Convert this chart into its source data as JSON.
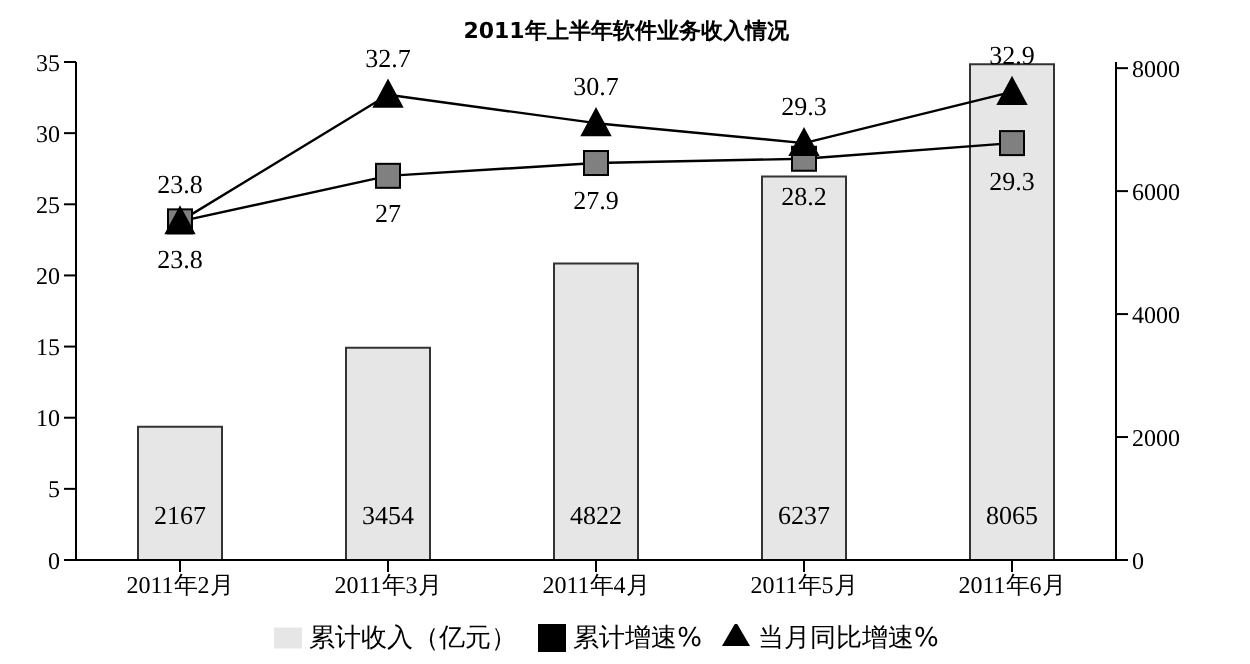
{
  "chart_data": {
    "type": "bar",
    "title": "2011年上半年软件业务收入情况",
    "categories": [
      "2011年2月",
      "2011年3月",
      "2011年4月",
      "2011年5月",
      "2011年6月"
    ],
    "series": [
      {
        "name": "累计收入（亿元）",
        "axis": "y2",
        "color": "#e6e6e6",
        "values": [
          2167,
          3454,
          4822,
          6237,
          8065
        ]
      },
      {
        "name": "累计增速%",
        "type": "line",
        "axis": "y",
        "color": "#808080",
        "marker": "square",
        "values": [
          23.8,
          27,
          27.9,
          28.2,
          29.3
        ]
      },
      {
        "name": "当月同比增速%",
        "type": "line",
        "axis": "y",
        "color": "#000000",
        "marker": "triangle",
        "values": [
          23.8,
          32.7,
          30.7,
          29.3,
          32.9
        ]
      }
    ],
    "ylim": [
      0,
      35
    ],
    "yticks": [
      0,
      5,
      10,
      15,
      20,
      25,
      30,
      35
    ],
    "y2lim": [
      0,
      8100
    ],
    "y2ticks": [
      0,
      2000,
      4000,
      6000,
      8000
    ],
    "data_labels": true,
    "grid": false,
    "legend": "bottom",
    "line_style": "solid"
  }
}
